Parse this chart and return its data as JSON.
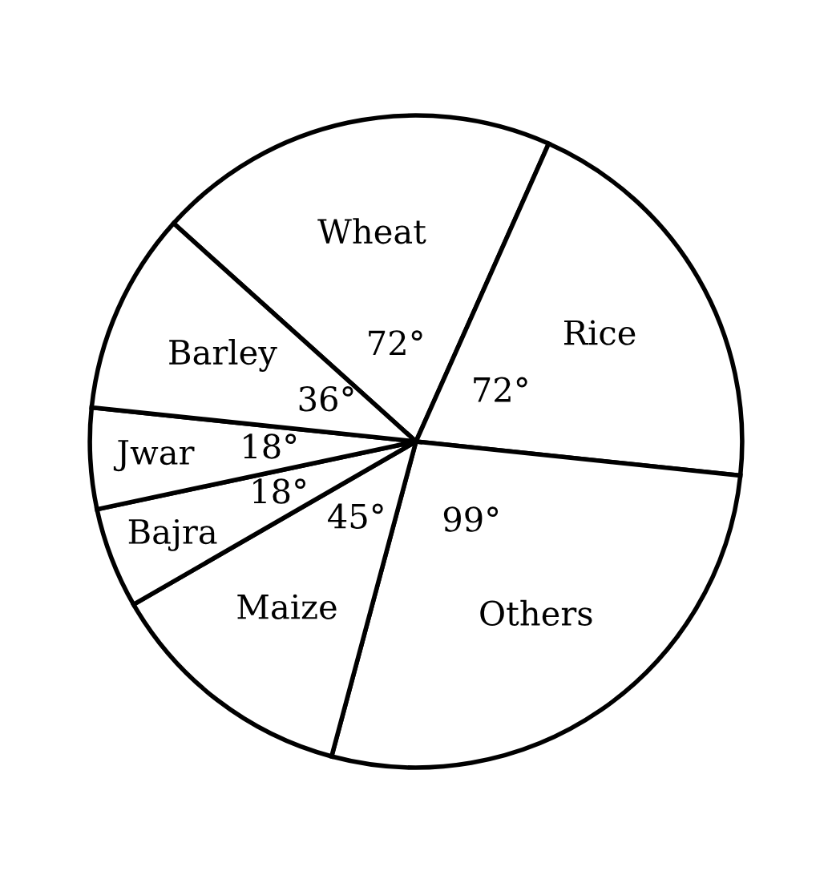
{
  "chart_data": {
    "type": "pie",
    "categories": [
      "Wheat",
      "Rice",
      "Others",
      "Maize",
      "Bajra",
      "Jwar",
      "Barley"
    ],
    "values": [
      72,
      72,
      99,
      45,
      18,
      18,
      36
    ],
    "value_labels": [
      "72°",
      "72°",
      "99°",
      "45°",
      "18°",
      "18°",
      "36°"
    ],
    "colors": [
      "#ffffff",
      "#ffffff",
      "#ffffff",
      "#ffffff",
      "#ffffff",
      "#ffffff",
      "#ffffff"
    ]
  }
}
